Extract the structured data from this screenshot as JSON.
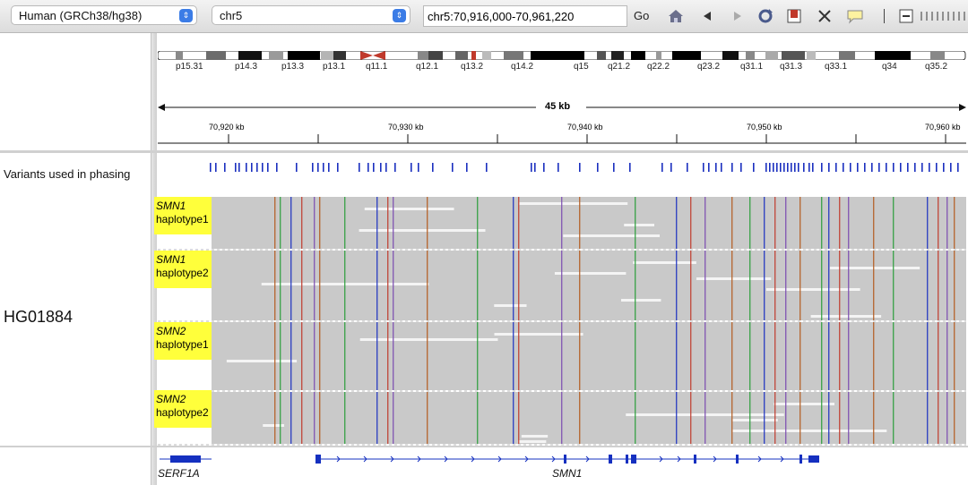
{
  "toolbar": {
    "genome": "Human (GRCh38/hg38)",
    "chromosome": "chr5",
    "locus": "chr5:70,916,000-70,961,220",
    "go_label": "Go",
    "icons": [
      "home-icon",
      "back-icon",
      "forward-icon",
      "refresh-icon",
      "roi-icon",
      "resize-icon",
      "popup-text-icon",
      "zoom-out-icon",
      "zoom-slider"
    ]
  },
  "ideogram": {
    "bands": [
      "p15.31",
      "p14.3",
      "p13.3",
      "p13.1",
      "q11.1",
      "q12.1",
      "q13.2",
      "q14.2",
      "q15",
      "q21.2",
      "q22.2",
      "q23.2",
      "q31.1",
      "q31.3",
      "q33.1",
      "q34",
      "q35.2"
    ]
  },
  "ruler": {
    "span_label": "45 kb",
    "ticks": [
      "70,920 kb",
      "70,930 kb",
      "70,940 kb",
      "70,950 kb",
      "70,960 kb"
    ]
  },
  "tracks": {
    "variants_label": "Variants used in phasing",
    "sample_name": "HG01884",
    "groups": [
      {
        "gene": "SMN1",
        "hap": "haplotype1"
      },
      {
        "gene": "SMN1",
        "hap": "haplotype2"
      },
      {
        "gene": "SMN2",
        "hap": "haplotype1"
      },
      {
        "gene": "SMN2",
        "hap": "haplotype2"
      }
    ]
  },
  "genes": [
    "SERF1A",
    "SMN1"
  ],
  "colors": {
    "read_gray": "#c9c9c9",
    "variant_blue": "#1a2fbf",
    "highlight_yellow": "#ffff3b",
    "gene_blue": "#1530c0",
    "centromere_red": "#c0392b"
  }
}
